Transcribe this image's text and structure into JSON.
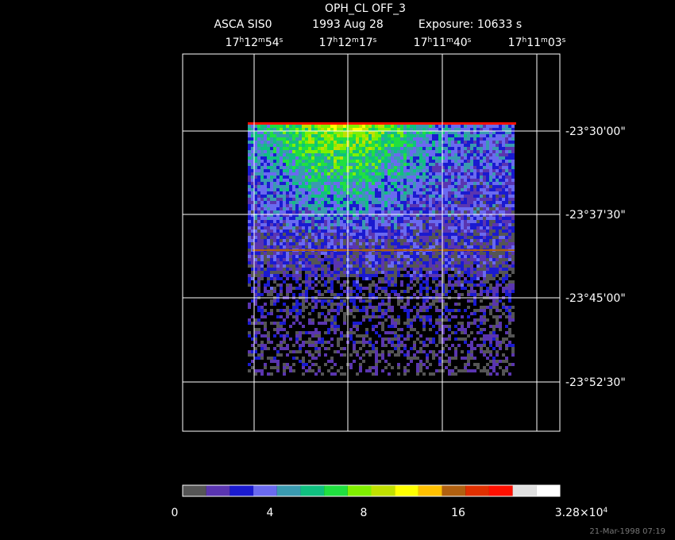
{
  "header": {
    "title": "OPH_CL OFF_3",
    "instrument": "ASCA SIS0",
    "date": "1993 Aug 28",
    "exposure": "Exposure: 10633 s"
  },
  "ra_labels": [
    [
      "17",
      "h",
      "12",
      "m",
      "54",
      "s"
    ],
    [
      "17",
      "h",
      "12",
      "m",
      "17",
      "s"
    ],
    [
      "17",
      "h",
      "11",
      "m",
      "40",
      "s"
    ],
    [
      "17",
      "h",
      "11",
      "m",
      "03",
      "s"
    ]
  ],
  "dec_labels": [
    "-23°30'00\"",
    "-23°37'30\"",
    "-23°45'00\"",
    "-23°52'30\""
  ],
  "colorbar": {
    "colors": [
      "#555555",
      "#5a35b0",
      "#1a1ad0",
      "#6a6af0",
      "#3a9ab0",
      "#10c080",
      "#20e040",
      "#80f000",
      "#c0e000",
      "#ffff00",
      "#ffc000",
      "#b06010",
      "#e03000",
      "#ff1000",
      "#e0e0e0",
      "#ffffff"
    ],
    "labels": [
      [
        "0"
      ],
      [
        "4"
      ],
      [
        "8"
      ],
      [
        "16"
      ],
      [
        "3.28×10",
        "4"
      ]
    ]
  },
  "footer": {
    "timestamp": "21-Mar-1998 07:19"
  }
}
